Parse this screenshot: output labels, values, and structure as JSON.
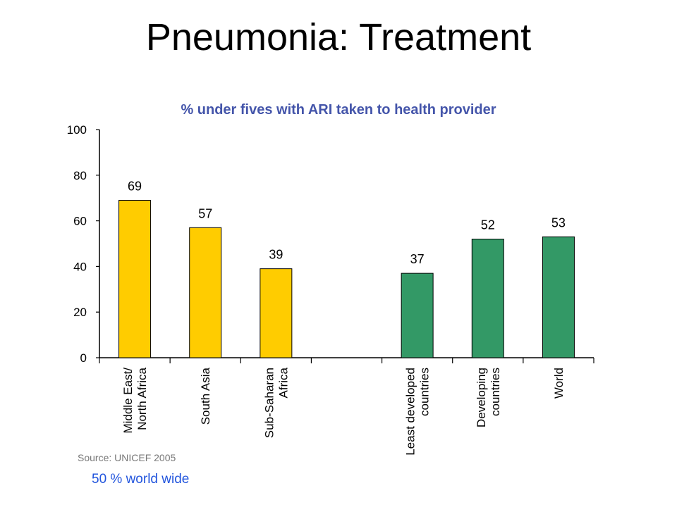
{
  "slide": {
    "title": "Pneumonia: Treatment",
    "footnote": "50 % world wide"
  },
  "chart_data": {
    "type": "bar",
    "title": "% under fives with ARI taken to health provider",
    "source": "Source: UNICEF 2005",
    "categories": [
      [
        "Middle East/",
        "North Africa"
      ],
      [
        "South Asia"
      ],
      [
        "Sub-Saharan",
        "Africa"
      ],
      [],
      [
        "Least developed",
        "countries"
      ],
      [
        "Developing",
        "countries"
      ],
      [
        "World"
      ]
    ],
    "values": [
      69,
      57,
      39,
      null,
      37,
      52,
      53
    ],
    "bar_colors": [
      "#ffcc00",
      "#ffcc00",
      "#ffcc00",
      null,
      "#339966",
      "#339966",
      "#339966"
    ],
    "ylim": [
      0,
      100
    ],
    "yticks": [
      0,
      20,
      40,
      60,
      80,
      100
    ],
    "grid": false,
    "title_color": "#4455aa"
  }
}
